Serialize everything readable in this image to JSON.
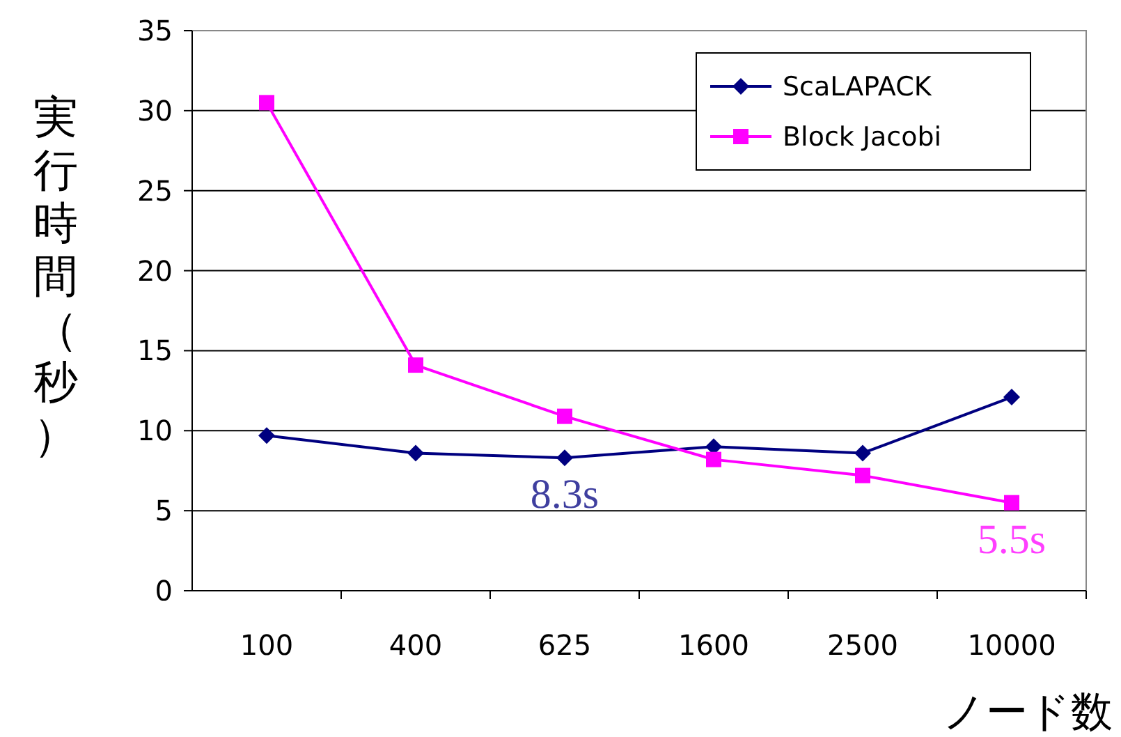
{
  "chart_data": {
    "type": "line",
    "ylabel": "実行時間（秒）",
    "xlabel": "ノード数",
    "categories": [
      "100",
      "400",
      "625",
      "1600",
      "2500",
      "10000"
    ],
    "series": [
      {
        "name": "ScaLAPACK",
        "color": "#000080",
        "marker": "diamond",
        "values": [
          9.7,
          8.6,
          8.3,
          9.0,
          8.6,
          12.1
        ]
      },
      {
        "name": "Block Jacobi",
        "color": "#ff00ff",
        "marker": "square",
        "values": [
          30.5,
          14.1,
          10.9,
          8.2,
          7.2,
          5.5
        ]
      }
    ],
    "ylim": [
      0,
      35
    ],
    "yticks": [
      0,
      5,
      10,
      15,
      20,
      25,
      30,
      35
    ],
    "grid": "y",
    "legend": "top right",
    "annotations": [
      {
        "text": "8.3s",
        "x": "625",
        "y": 8.3
      },
      {
        "text": "5.5s",
        "x": "10000",
        "y": 5.5
      }
    ]
  }
}
